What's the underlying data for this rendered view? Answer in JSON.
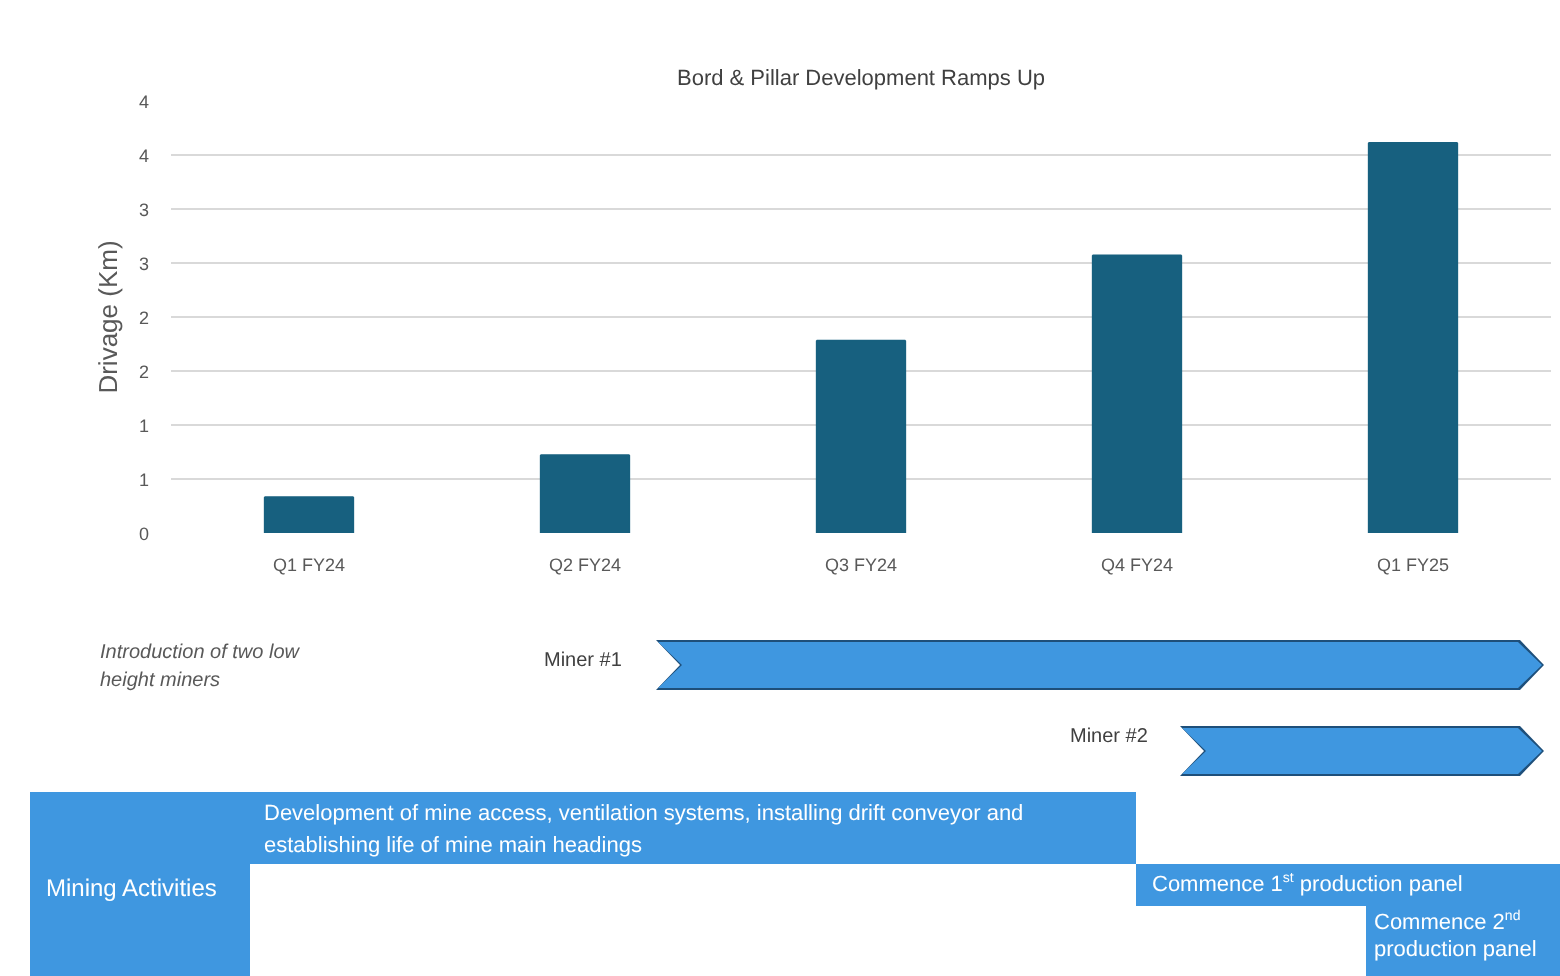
{
  "chart_data": {
    "type": "bar",
    "title": "Bord & Pillar Development Ramps Up",
    "ylabel": "Drivage (Km)",
    "categories": [
      "Q1 FY24",
      "Q2 FY24",
      "Q3 FY24",
      "Q4 FY24",
      "Q1 FY25"
    ],
    "values": [
      0.33,
      0.72,
      1.78,
      2.57,
      3.61
    ],
    "color": "#17607f",
    "ylim": [
      0,
      4
    ],
    "yticks": [
      0,
      {
        "value": 0.5,
        "label": "1"
      },
      1,
      {
        "value": 1.5,
        "label": "2"
      },
      2,
      {
        "value": 2.5,
        "label": "3"
      },
      3,
      {
        "value": 3.5,
        "label": "4"
      },
      4
    ],
    "grid": "y",
    "annotations": [
      "Introduction of two low height miners",
      "Miner #1",
      "Miner #2",
      "Development of mine access, ventilation systems, installing drift conveyor and establishing life of mine main headings",
      "Mining Activities",
      "Commence 1$^{st}$ production panel",
      "Commence 2$^{nd}$ production panel"
    ]
  }
}
